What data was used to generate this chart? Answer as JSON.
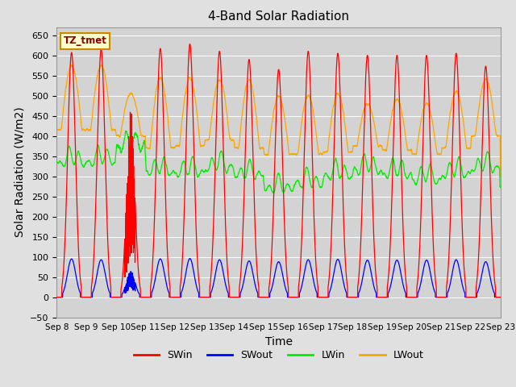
{
  "title": "4-Band Solar Radiation",
  "xlabel": "Time",
  "ylabel": "Solar Radiation (W/m2)",
  "ylim": [
    -50,
    670
  ],
  "yticks": [
    -50,
    0,
    50,
    100,
    150,
    200,
    250,
    300,
    350,
    400,
    450,
    500,
    550,
    600,
    650
  ],
  "bg_color": "#e0e0e0",
  "plot_bg_color": "#d0d0d0",
  "legend_label": "TZ_tmet",
  "colors": {
    "SWin": "#ff0000",
    "SWout": "#0000ff",
    "LWin": "#00ff00",
    "LWout": "#ffa500"
  },
  "n_days": 15,
  "start_day": 8,
  "swin_peaks": [
    607,
    615,
    475,
    617,
    628,
    610,
    590,
    565,
    610,
    605,
    600,
    600,
    600,
    605,
    573
  ],
  "swout_peaks": [
    95,
    93,
    65,
    95,
    96,
    93,
    90,
    88,
    93,
    94,
    92,
    92,
    92,
    93,
    88
  ],
  "lwin_base": [
    332,
    335,
    375,
    310,
    308,
    320,
    300,
    265,
    278,
    300,
    315,
    305,
    290,
    305,
    318
  ],
  "lwout_night": [
    415,
    415,
    400,
    370,
    375,
    390,
    370,
    355,
    355,
    360,
    375,
    365,
    355,
    370,
    400
  ],
  "lwout_day_peak": [
    575,
    575,
    505,
    545,
    545,
    540,
    540,
    500,
    500,
    505,
    480,
    490,
    480,
    510,
    540
  ],
  "xtick_labels": [
    "Sep 8",
    "Sep 9",
    "Sep 10",
    "Sep 11",
    "Sep 12",
    "Sep 13",
    "Sep 14",
    "Sep 15",
    "Sep 16",
    "Sep 17",
    "Sep 18",
    "Sep 19",
    "Sep 20",
    "Sep 21",
    "Sep 22",
    "Sep 23"
  ]
}
